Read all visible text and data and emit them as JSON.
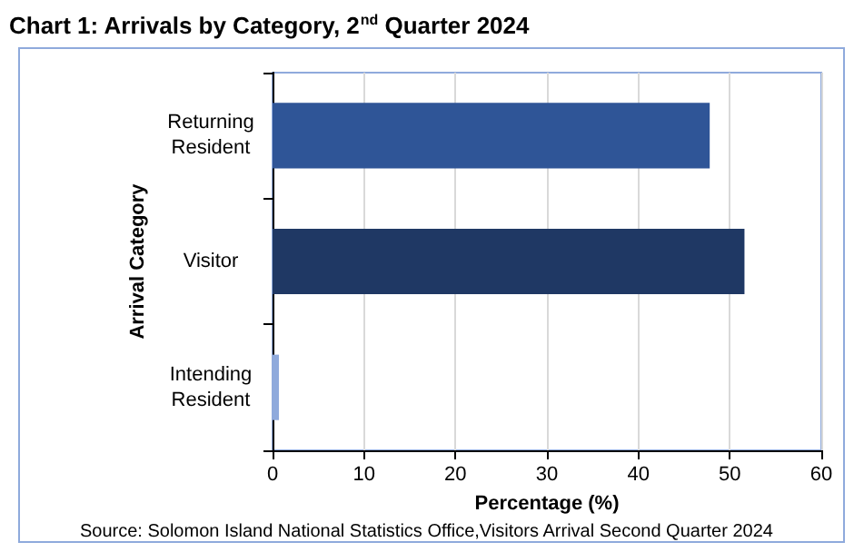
{
  "chart_data": {
    "type": "bar",
    "orientation": "horizontal",
    "title": "Chart 1: Arrivals by Category, 2$^{nd}$ Quarter 2024",
    "categories": [
      "Returning\nResident",
      "Visitor",
      "Intending\nResident"
    ],
    "values": [
      47.8,
      51.6,
      0.7
    ],
    "colors": [
      "#2f5597",
      "#1f3864",
      "#8faadc"
    ],
    "xlim": [
      0,
      60
    ],
    "xticks": [
      0,
      10,
      20,
      30,
      40,
      50,
      60
    ],
    "xlabel": "Percentage (%)",
    "ylabel": "Arrival Category",
    "grid": "x",
    "annotations": [
      "Source: Solomon Island National Statistics Office,Visitors Arrival Second Quarter 2024"
    ]
  }
}
